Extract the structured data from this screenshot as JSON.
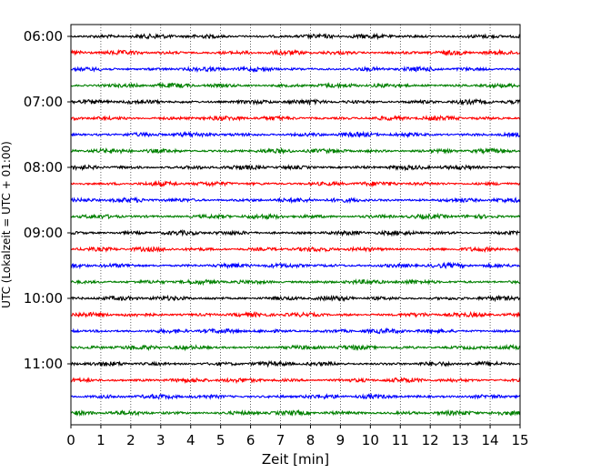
{
  "chart_data": {
    "type": "line",
    "title": "",
    "xlabel": "Zeit  [min]",
    "ylabel": "UTC (Lokalzeit = UTC + 01:00)",
    "xlim": [
      0,
      15
    ],
    "x_ticks": [
      0,
      1,
      2,
      3,
      4,
      5,
      6,
      7,
      8,
      9,
      10,
      11,
      12,
      13,
      14,
      15
    ],
    "y_tick_labels": [
      "06:00",
      "07:00",
      "08:00",
      "09:00",
      "10:00",
      "11:00"
    ],
    "traces_per_hour": 4,
    "trace_start_times": [
      "06:00",
      "06:15",
      "06:30",
      "06:45",
      "07:00",
      "07:15",
      "07:30",
      "07:45",
      "08:00",
      "08:15",
      "08:30",
      "08:45",
      "09:00",
      "09:15",
      "09:30",
      "09:45",
      "10:00",
      "10:15",
      "10:30",
      "10:45",
      "11:00",
      "11:15",
      "11:30",
      "11:45"
    ],
    "trace_color_cycle": [
      "#000000",
      "#ff0000",
      "#0000ff",
      "#008000"
    ],
    "x_grid": "dotted vertical lines at each minute",
    "y_grid": false,
    "legend": "none"
  }
}
